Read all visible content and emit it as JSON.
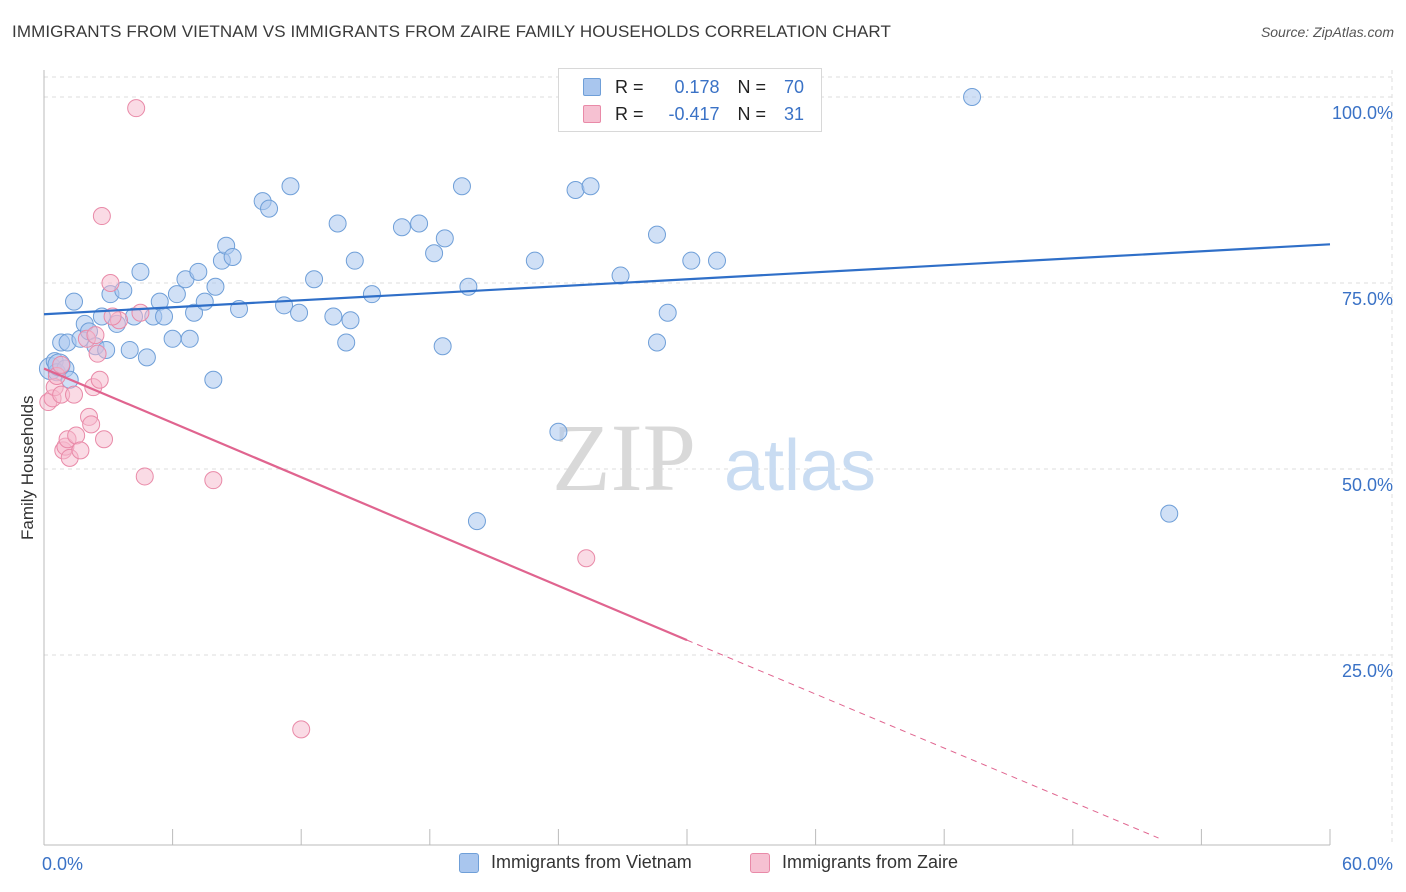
{
  "header": {
    "title": "IMMIGRANTS FROM VIETNAM VS IMMIGRANTS FROM ZAIRE FAMILY HOUSEHOLDS CORRELATION CHART",
    "source": "Source: ZipAtlas.com"
  },
  "watermark": {
    "zip": "ZIP",
    "atlas": "atlas"
  },
  "legend": {
    "rows": [
      {
        "r_label": "R =",
        "r_value": "0.178",
        "n_label": "N =",
        "n_value": "70"
      },
      {
        "r_label": "R =",
        "r_value": "-0.417",
        "n_label": "N =",
        "n_value": "31"
      }
    ]
  },
  "bottom_legend": {
    "items": [
      "Immigrants from Vietnam",
      "Immigrants from Zaire"
    ]
  },
  "colors": {
    "vietnam_fill": "#a9c6ee",
    "vietnam_stroke": "#6f9fd8",
    "vietnam_line": "#2f6fc8",
    "zaire_fill": "#f6b8cc",
    "zaire_stroke": "#e98aa8",
    "zaire_line": "#e0648f",
    "axis_text": "#3a72c6",
    "grid": "#dddddd"
  },
  "chart_data": {
    "type": "scatter",
    "title": "IMMIGRANTS FROM VIETNAM VS IMMIGRANTS FROM ZAIRE FAMILY HOUSEHOLDS CORRELATION CHART",
    "xlabel": "",
    "ylabel": "Family Households",
    "xlim": [
      0,
      60
    ],
    "ylim": [
      0,
      105
    ],
    "x_tick_labels": [
      "0.0%",
      "60.0%"
    ],
    "y_ticks": [
      25,
      50,
      75,
      100
    ],
    "y_tick_labels": [
      "25.0%",
      "50.0%",
      "75.0%",
      "100.0%"
    ],
    "grid": true,
    "legend_position": "top-center",
    "series": [
      {
        "name": "Immigrants from Vietnam",
        "points": [
          [
            0.3,
            63.5
          ],
          [
            0.5,
            64.5
          ],
          [
            0.6,
            63.0
          ],
          [
            0.8,
            67.0
          ],
          [
            1.0,
            63.5
          ],
          [
            1.1,
            67.0
          ],
          [
            1.2,
            62.0
          ],
          [
            1.4,
            72.5
          ],
          [
            1.7,
            67.5
          ],
          [
            1.9,
            69.5
          ],
          [
            2.1,
            68.5
          ],
          [
            2.4,
            66.5
          ],
          [
            2.7,
            70.5
          ],
          [
            2.9,
            66.0
          ],
          [
            3.1,
            73.5
          ],
          [
            3.4,
            69.5
          ],
          [
            3.7,
            74.0
          ],
          [
            4.0,
            66.0
          ],
          [
            4.2,
            70.5
          ],
          [
            4.5,
            76.5
          ],
          [
            4.8,
            65.0
          ],
          [
            5.1,
            70.5
          ],
          [
            5.4,
            72.5
          ],
          [
            5.6,
            70.5
          ],
          [
            6.0,
            67.5
          ],
          [
            6.2,
            73.5
          ],
          [
            6.6,
            75.5
          ],
          [
            6.8,
            67.5
          ],
          [
            7.0,
            71.0
          ],
          [
            7.2,
            76.5
          ],
          [
            7.5,
            72.5
          ],
          [
            7.9,
            62.0
          ],
          [
            8.0,
            74.5
          ],
          [
            8.3,
            78.0
          ],
          [
            8.5,
            80.0
          ],
          [
            8.8,
            78.5
          ],
          [
            9.1,
            71.5
          ],
          [
            10.2,
            86.0
          ],
          [
            10.5,
            85.0
          ],
          [
            11.2,
            72.0
          ],
          [
            11.5,
            88.0
          ],
          [
            11.9,
            71.0
          ],
          [
            12.6,
            75.5
          ],
          [
            13.5,
            70.5
          ],
          [
            13.7,
            83.0
          ],
          [
            14.1,
            67.0
          ],
          [
            14.3,
            70.0
          ],
          [
            14.5,
            78.0
          ],
          [
            15.3,
            73.5
          ],
          [
            16.7,
            82.5
          ],
          [
            17.5,
            83.0
          ],
          [
            18.2,
            79.0
          ],
          [
            18.7,
            81.0
          ],
          [
            18.6,
            66.5
          ],
          [
            19.5,
            88.0
          ],
          [
            19.8,
            74.5
          ],
          [
            20.2,
            43.0
          ],
          [
            22.9,
            78.0
          ],
          [
            24.0,
            55.0
          ],
          [
            24.8,
            87.5
          ],
          [
            25.5,
            88.0
          ],
          [
            26.9,
            76.0
          ],
          [
            28.6,
            81.5
          ],
          [
            28.6,
            67.0
          ],
          [
            29.1,
            71.0
          ],
          [
            30.2,
            78.0
          ],
          [
            31.4,
            78.0
          ],
          [
            43.3,
            100.0
          ],
          [
            52.5,
            44.0
          ],
          [
            0.7,
            64.0
          ]
        ]
      },
      {
        "name": "Immigrants from Zaire",
        "points": [
          [
            0.2,
            59.0
          ],
          [
            0.4,
            59.5
          ],
          [
            0.5,
            61.0
          ],
          [
            0.6,
            62.5
          ],
          [
            0.8,
            60.0
          ],
          [
            0.8,
            64.0
          ],
          [
            0.9,
            52.5
          ],
          [
            1.0,
            53.0
          ],
          [
            1.1,
            54.0
          ],
          [
            1.2,
            51.5
          ],
          [
            1.4,
            60.0
          ],
          [
            1.5,
            54.5
          ],
          [
            1.7,
            52.5
          ],
          [
            2.0,
            67.5
          ],
          [
            2.1,
            57.0
          ],
          [
            2.2,
            56.0
          ],
          [
            2.3,
            61.0
          ],
          [
            2.4,
            68.0
          ],
          [
            2.5,
            65.5
          ],
          [
            2.6,
            62.0
          ],
          [
            2.7,
            84.0
          ],
          [
            2.8,
            54.0
          ],
          [
            3.1,
            75.0
          ],
          [
            3.5,
            70.0
          ],
          [
            4.3,
            98.5
          ],
          [
            4.5,
            71.0
          ],
          [
            4.7,
            49.0
          ],
          [
            7.9,
            48.5
          ],
          [
            25.3,
            38.0
          ],
          [
            12.0,
            15.0
          ],
          [
            3.2,
            70.5
          ]
        ]
      }
    ],
    "trendlines": [
      {
        "series": "Immigrants from Vietnam",
        "x": [
          0,
          60
        ],
        "y": [
          70.8,
          80.2
        ],
        "style": "solid"
      },
      {
        "series": "Immigrants from Zaire",
        "x": [
          0,
          30
        ],
        "y": [
          63.5,
          27.0
        ],
        "style": "solid"
      },
      {
        "series": "Immigrants from Zaire",
        "x": [
          30,
          52
        ],
        "y": [
          27.0,
          0.4
        ],
        "style": "dashed"
      }
    ]
  }
}
